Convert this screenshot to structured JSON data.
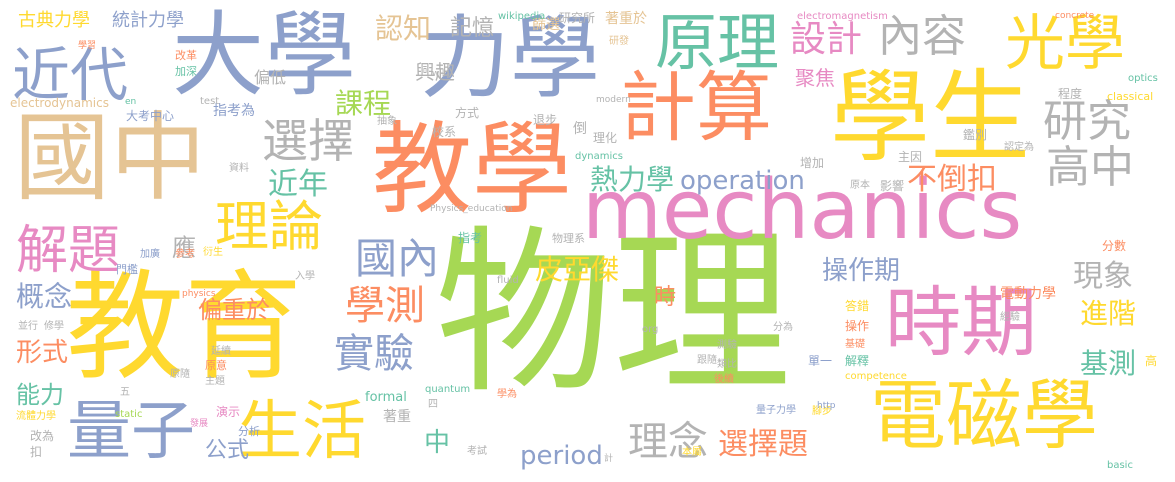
{
  "palette": {
    "green": "#a6d854",
    "orange": "#fc8d62",
    "blue": "#8da0cb",
    "pink": "#e78ac3",
    "yellow": "#ffd92f",
    "tan": "#e5c494",
    "teal": "#66c2a5",
    "gray": "#b3b3b3"
  },
  "words": [
    {
      "text": "物理",
      "color": "green"
    },
    {
      "text": "教育",
      "color": "yellow"
    },
    {
      "text": "mechanics",
      "color": "pink"
    },
    {
      "text": "教學",
      "color": "orange"
    },
    {
      "text": "國中",
      "color": "tan"
    },
    {
      "text": "學生",
      "color": "yellow"
    },
    {
      "text": "大學",
      "color": "blue"
    },
    {
      "text": "力學",
      "color": "blue"
    },
    {
      "text": "計算",
      "color": "orange"
    },
    {
      "text": "電磁學",
      "color": "yellow"
    },
    {
      "text": "時期",
      "color": "pink"
    },
    {
      "text": "原理",
      "color": "teal"
    },
    {
      "text": "光學",
      "color": "yellow"
    },
    {
      "text": "近代",
      "color": "blue"
    },
    {
      "text": "生活",
      "color": "yellow"
    },
    {
      "text": "量子",
      "color": "blue"
    },
    {
      "text": "內容",
      "color": "gray"
    },
    {
      "text": "理論",
      "color": "yellow"
    },
    {
      "text": "解題",
      "color": "pink"
    },
    {
      "text": "選擇",
      "color": "gray"
    },
    {
      "text": "研究",
      "color": "gray"
    },
    {
      "text": "高中",
      "color": "gray"
    },
    {
      "text": "國內",
      "color": "blue"
    },
    {
      "text": "學測",
      "color": "orange"
    },
    {
      "text": "實驗",
      "color": "blue"
    },
    {
      "text": "設計",
      "color": "pink"
    },
    {
      "text": "理念",
      "color": "gray"
    },
    {
      "text": "選擇題",
      "color": "orange"
    },
    {
      "text": "皮亞傑",
      "color": "yellow"
    },
    {
      "text": "認知",
      "color": "tan"
    },
    {
      "text": "課程",
      "color": "green"
    },
    {
      "text": "近年",
      "color": "teal"
    },
    {
      "text": "熱力學",
      "color": "teal"
    },
    {
      "text": "operation",
      "color": "blue"
    },
    {
      "text": "不倒扣",
      "color": "orange"
    },
    {
      "text": "操作期",
      "color": "blue"
    },
    {
      "text": "現象",
      "color": "gray"
    },
    {
      "text": "概念",
      "color": "blue"
    },
    {
      "text": "偏重於",
      "color": "orange"
    },
    {
      "text": "period",
      "color": "blue"
    },
    {
      "text": "進階",
      "color": "yellow"
    },
    {
      "text": "基測",
      "color": "teal"
    },
    {
      "text": "形式",
      "color": "orange"
    },
    {
      "text": "能力",
      "color": "teal"
    },
    {
      "text": "公式",
      "color": "blue"
    },
    {
      "text": "中",
      "color": "teal"
    },
    {
      "text": "時",
      "color": "orange"
    },
    {
      "text": "記憶",
      "color": "gray"
    },
    {
      "text": "興趣",
      "color": "gray"
    },
    {
      "text": "聚焦",
      "color": "pink"
    },
    {
      "text": "偏低",
      "color": "gray"
    },
    {
      "text": "應",
      "color": "gray"
    },
    {
      "text": "古典力學",
      "color": "yellow"
    },
    {
      "text": "統計力學",
      "color": "blue"
    },
    {
      "text": "篩選",
      "color": "tan"
    },
    {
      "text": "研究所",
      "color": "gray"
    },
    {
      "text": "著重於",
      "color": "tan"
    },
    {
      "text": "wikipedia",
      "color": "teal"
    },
    {
      "text": "electromagnetism",
      "color": "pink"
    },
    {
      "text": "concrete",
      "color": "orange"
    },
    {
      "text": "electrodynamics",
      "color": "tan"
    },
    {
      "text": "指考為",
      "color": "blue"
    },
    {
      "text": "大考中心",
      "color": "blue"
    },
    {
      "text": "方式",
      "color": "gray"
    },
    {
      "text": "test",
      "color": "gray"
    },
    {
      "text": "classical",
      "color": "yellow"
    },
    {
      "text": "optics",
      "color": "teal"
    },
    {
      "text": "程度",
      "color": "gray"
    },
    {
      "text": "校系",
      "color": "gray"
    },
    {
      "text": "理化",
      "color": "gray"
    },
    {
      "text": "倒",
      "color": "gray"
    },
    {
      "text": "退步",
      "color": "gray"
    },
    {
      "text": "dynamics",
      "color": "teal"
    },
    {
      "text": "增加",
      "color": "gray"
    },
    {
      "text": "主因",
      "color": "gray"
    },
    {
      "text": "影響",
      "color": "gray"
    },
    {
      "text": "原本",
      "color": "gray"
    },
    {
      "text": "鑑別",
      "color": "gray"
    },
    {
      "text": "認定為",
      "color": "gray"
    },
    {
      "text": "分數",
      "color": "orange"
    },
    {
      "text": "電動力學",
      "color": "orange"
    },
    {
      "text": "經驗",
      "color": "gray"
    },
    {
      "text": "答錯",
      "color": "yellow"
    },
    {
      "text": "操作",
      "color": "orange"
    },
    {
      "text": "基礎",
      "color": "orange"
    },
    {
      "text": "解釋",
      "color": "teal"
    },
    {
      "text": "competence",
      "color": "yellow"
    },
    {
      "text": "單一",
      "color": "blue"
    },
    {
      "text": "量子力學",
      "color": "blue"
    },
    {
      "text": "腳步",
      "color": "yellow"
    },
    {
      "text": "basic",
      "color": "teal"
    },
    {
      "text": "高",
      "color": "yellow"
    },
    {
      "text": "物理系",
      "color": "gray"
    },
    {
      "text": "指考",
      "color": "teal"
    },
    {
      "text": "fluid",
      "color": "gray"
    },
    {
      "text": "入學",
      "color": "gray"
    },
    {
      "text": "測驗",
      "color": "gray"
    },
    {
      "text": "類比",
      "color": "gray"
    },
    {
      "text": "跟隨",
      "color": "gray"
    },
    {
      "text": "後續",
      "color": "orange"
    },
    {
      "text": "學為",
      "color": "orange"
    },
    {
      "text": "formal",
      "color": "teal"
    },
    {
      "text": "quantum",
      "color": "teal"
    },
    {
      "text": "著重",
      "color": "gray"
    },
    {
      "text": "四",
      "color": "gray"
    },
    {
      "text": "考試",
      "color": "gray"
    },
    {
      "text": "本屬",
      "color": "yellow"
    },
    {
      "text": "分為",
      "color": "gray"
    },
    {
      "text": "org",
      "color": "gray"
    },
    {
      "text": "static",
      "color": "green"
    },
    {
      "text": "演示",
      "color": "pink"
    },
    {
      "text": "分析",
      "color": "blue"
    },
    {
      "text": "改為",
      "color": "gray"
    },
    {
      "text": "扣",
      "color": "gray"
    },
    {
      "text": "修學",
      "color": "gray"
    },
    {
      "text": "並行",
      "color": "gray"
    },
    {
      "text": "原意",
      "color": "orange"
    },
    {
      "text": "原隨",
      "color": "gray"
    },
    {
      "text": "主題",
      "color": "gray"
    },
    {
      "text": "延續",
      "color": "gray"
    },
    {
      "text": "門檻",
      "color": "blue"
    },
    {
      "text": "加廣",
      "color": "blue"
    },
    {
      "text": "參考",
      "color": "orange"
    },
    {
      "text": "衍生",
      "color": "yellow"
    },
    {
      "text": "資料",
      "color": "gray"
    },
    {
      "text": "學習",
      "color": "orange"
    },
    {
      "text": "改革",
      "color": "orange"
    },
    {
      "text": "加深",
      "color": "teal"
    },
    {
      "text": "en",
      "color": "teal"
    },
    {
      "text": "抽象",
      "color": "gray"
    },
    {
      "text": "研發",
      "color": "tan"
    },
    {
      "text": "modern",
      "color": "gray"
    },
    {
      "text": "Physics_education",
      "color": "gray"
    },
    {
      "text": "physics",
      "color": "orange"
    },
    {
      "text": "流體力學",
      "color": "yellow"
    },
    {
      "text": "五",
      "color": "gray"
    },
    {
      "text": "發展",
      "color": "pink"
    },
    {
      "text": "wiki",
      "color": "gray"
    },
    {
      "text": "http",
      "color": "blue"
    },
    {
      "text": "計",
      "color": "gray"
    }
  ]
}
